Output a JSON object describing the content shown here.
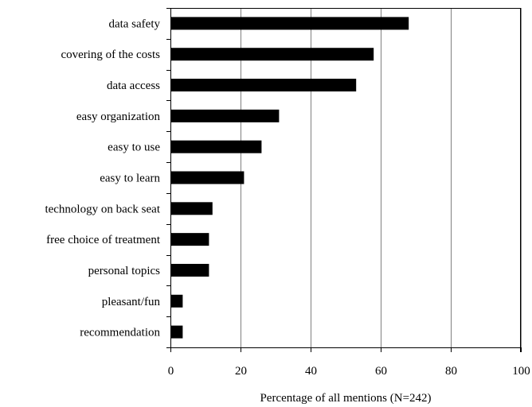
{
  "chart_data": {
    "type": "bar",
    "orientation": "horizontal",
    "categories": [
      "data safety",
      "covering of the costs",
      "data access",
      "easy organization",
      "easy to use",
      "easy to learn",
      "technology on back seat",
      "free choice of treatment",
      "personal topics",
      "pleasant/fun",
      "recommendation"
    ],
    "values": [
      68,
      58,
      53,
      31,
      26,
      21,
      12,
      11,
      11,
      3.5,
      3.5
    ],
    "title": "",
    "xlabel": "Percentage of all  mentions (N=242)",
    "ylabel": "",
    "xlim": [
      0,
      100
    ],
    "xticks": [
      "0",
      "20",
      "40",
      "60",
      "80",
      "100"
    ],
    "grid": "vertical",
    "legend": "none",
    "colors": {
      "bar": "#000000",
      "grid": "#808080",
      "axis": "#000000"
    }
  }
}
